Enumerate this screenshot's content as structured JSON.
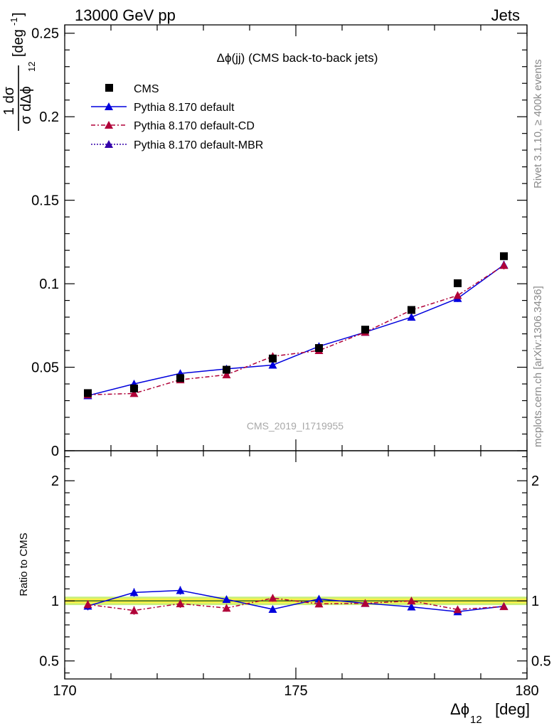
{
  "header": {
    "left": "13000 GeV pp",
    "right": "Jets"
  },
  "side_labels": {
    "rivet": "Rivet 3.1.10, ≥ 400k events",
    "mcplots": "mcplots.cern.ch [arXiv:1306.3436]"
  },
  "colors": {
    "cms": "#000000",
    "default": "#0000dd",
    "cd": "#b00038",
    "mbr": "#3300aa",
    "band_inner": "#fff04a",
    "band_outer": "#c6f07a",
    "ratio_line": "#1a5c1a"
  },
  "chart_data": [
    {
      "type": "scatter",
      "panel": "main",
      "title": "Δϕ(jj) (CMS back-to-back jets)",
      "watermark": "CMS_2019_I1719955",
      "ylabel_top": "1 dσ",
      "ylabel_bottom": "σ dΔϕ",
      "ylabel_sub": "12",
      "ylabel_unit": "[deg",
      "ylabel_unit_sup": "-1",
      "ylim": [
        0,
        0.255
      ],
      "yticks": [
        {
          "value": 0,
          "label": "0"
        },
        {
          "value": 0.05,
          "label": "0.05"
        },
        {
          "value": 0.1,
          "label": "0.1"
        },
        {
          "value": 0.15,
          "label": "0.15"
        },
        {
          "value": 0.2,
          "label": "0.2"
        },
        {
          "value": 0.25,
          "label": "0.25"
        }
      ],
      "xlim": [
        170,
        180
      ],
      "x": [
        170.5,
        171.5,
        172.5,
        173.5,
        174.5,
        175.5,
        176.5,
        177.5,
        178.5,
        179.5
      ],
      "series": [
        {
          "name": "CMS",
          "style": "square",
          "color_key": "cms",
          "values": [
            0.0345,
            0.0373,
            0.0435,
            0.0485,
            0.0552,
            0.0615,
            0.0725,
            0.0843,
            0.1003,
            0.1165
          ]
        },
        {
          "name": "Pythia 8.170 default",
          "style": "solid",
          "color_key": "default",
          "values": [
            0.033,
            0.04,
            0.0463,
            0.049,
            0.0513,
            0.0625,
            0.071,
            0.08,
            0.0912,
            0.1113
          ],
          "errors": [
            0.0012,
            0.0014,
            0.0015,
            0.0015,
            0.0015,
            0.0017,
            0.0018,
            0.0019,
            0.0021,
            0.0024
          ]
        },
        {
          "name": "Pythia 8.170 default-CD",
          "style": "dashdot",
          "color_key": "cd",
          "values": [
            0.0335,
            0.0343,
            0.0425,
            0.0455,
            0.0565,
            0.06,
            0.071,
            0.0842,
            0.093,
            0.111
          ],
          "errors": [
            0.0012,
            0.0013,
            0.0014,
            0.0014,
            0.0016,
            0.0016,
            0.0017,
            0.0019,
            0.0021,
            0.0024
          ]
        },
        {
          "name": "Pythia 8.170 default-MBR",
          "style": "dotted",
          "color_key": "mbr",
          "values": [],
          "errors": []
        }
      ]
    },
    {
      "type": "line",
      "panel": "ratio",
      "ylabel": "Ratio to CMS",
      "ylim": [
        0.35,
        2.25
      ],
      "yticks": [
        {
          "value": 0.5,
          "label": "0.5"
        },
        {
          "value": 1,
          "label": "1"
        },
        {
          "value": 2,
          "label": "2"
        }
      ],
      "xlim": [
        170,
        180
      ],
      "xticks": [
        {
          "value": 170,
          "label": "170"
        },
        {
          "value": 175,
          "label": "175"
        },
        {
          "value": 180,
          "label": "180"
        }
      ],
      "xlabel_main": "Δϕ",
      "xlabel_sub": "12",
      "xlabel_unit": "[deg]",
      "x": [
        170.5,
        171.5,
        172.5,
        173.5,
        174.5,
        175.5,
        176.5,
        177.5,
        178.5,
        179.5
      ],
      "band_inner": 0.02,
      "band_outer": 0.035,
      "series": [
        {
          "name": "Pythia 8.170 default",
          "color_key": "default",
          "style": "solid",
          "values": [
            0.957,
            1.07,
            1.087,
            1.012,
            0.93,
            1.016,
            0.98,
            0.95,
            0.91,
            0.955
          ],
          "errors": [
            0.035,
            0.035,
            0.035,
            0.03,
            0.028,
            0.028,
            0.025,
            0.022,
            0.02,
            0.02
          ]
        },
        {
          "name": "Pythia 8.170 default-CD",
          "color_key": "cd",
          "style": "dashdot",
          "values": [
            0.97,
            0.92,
            0.977,
            0.94,
            1.023,
            0.975,
            0.98,
            1.0,
            0.928,
            0.953
          ],
          "errors": [
            0.035,
            0.035,
            0.035,
            0.03,
            0.03,
            0.028,
            0.025,
            0.024,
            0.022,
            0.02
          ]
        }
      ]
    }
  ]
}
